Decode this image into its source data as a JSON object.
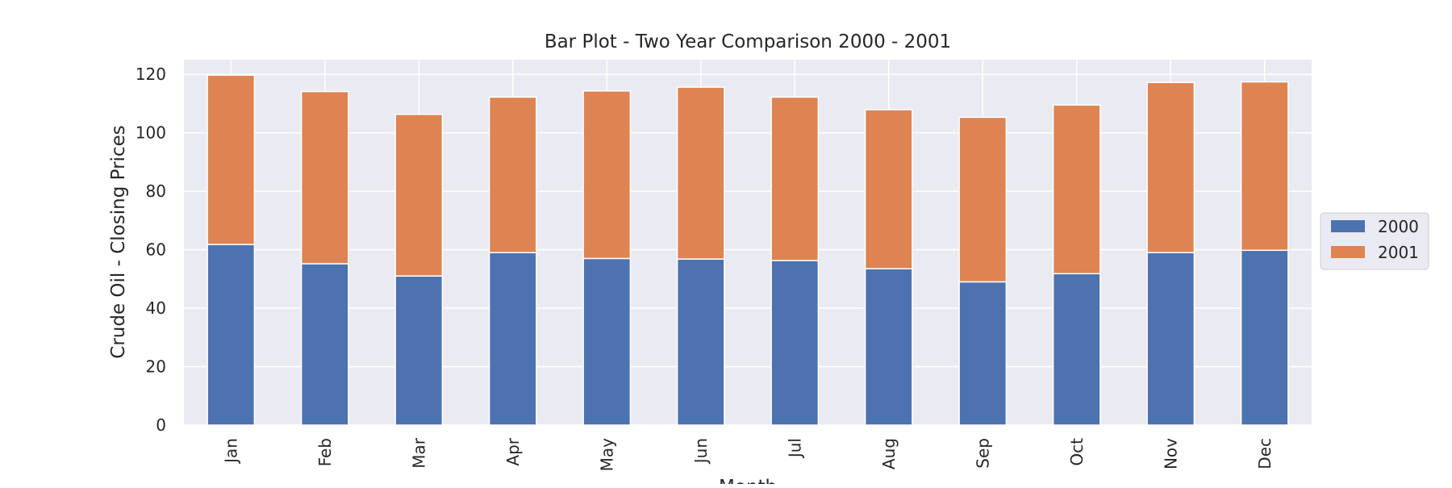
{
  "chart_data": {
    "type": "bar",
    "stacked": true,
    "title": "Bar Plot - Two Year Comparison 2000 - 2001",
    "xlabel": "Month",
    "ylabel": "Crude Oil - Closing Prices",
    "ylim": [
      0,
      125
    ],
    "yticks": [
      0,
      20,
      40,
      60,
      80,
      100,
      120
    ],
    "grid": true,
    "legend_placement": "outside-right",
    "categories": [
      "Jan",
      "Feb",
      "Mar",
      "Apr",
      "May",
      "Jun",
      "Jul",
      "Aug",
      "Sep",
      "Oct",
      "Nov",
      "Dec"
    ],
    "series": [
      {
        "name": "2000",
        "color": "#4c72b0",
        "values": [
          61.8,
          55.2,
          51.0,
          59.0,
          57.0,
          56.8,
          56.3,
          53.5,
          49.0,
          51.8,
          59.0,
          59.8
        ]
      },
      {
        "name": "2001",
        "color": "#dd8452",
        "values": [
          57.9,
          58.9,
          55.3,
          53.2,
          57.3,
          58.8,
          55.9,
          54.4,
          56.3,
          57.7,
          58.2,
          57.6
        ]
      }
    ],
    "colors": {
      "plot_background": "#eaeaf2",
      "grid": "#ffffff",
      "text": "#262626"
    }
  }
}
